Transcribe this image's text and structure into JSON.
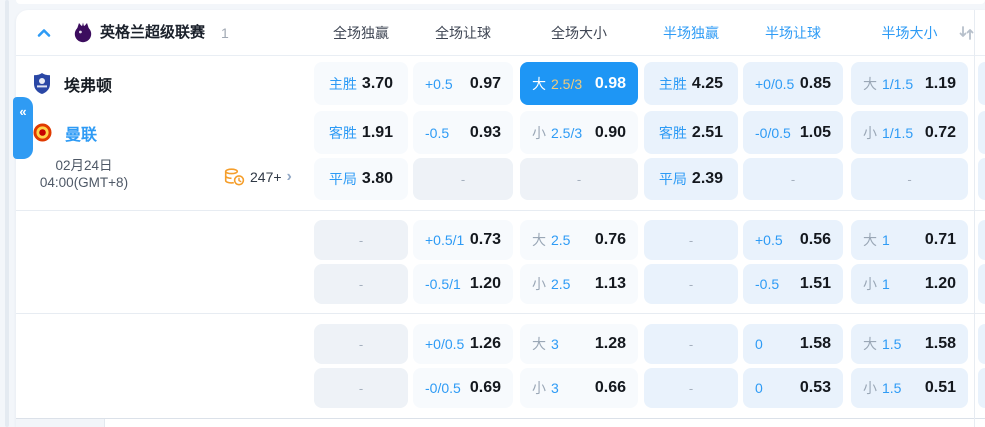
{
  "colors": {
    "accent": "#2E9BF5",
    "selected_bg": "#1E96F5",
    "selected_line": "#EFCB7D",
    "half_cell_bg": "#E9F2FC",
    "full_cell_bg": "#F7FAFD"
  },
  "icons": {
    "collapse_tab": "«",
    "more_arrow": "›"
  },
  "league_header": {
    "name": "英格兰超级联赛",
    "count": "1"
  },
  "columns": [
    {
      "label": "全场独赢",
      "scope": "full"
    },
    {
      "label": "全场让球",
      "scope": "full"
    },
    {
      "label": "全场大小",
      "scope": "full"
    },
    {
      "label": "半场独赢",
      "scope": "half"
    },
    {
      "label": "半场让球",
      "scope": "half"
    },
    {
      "label": "半场大小",
      "scope": "half"
    }
  ],
  "match": {
    "home_team": "埃弗顿",
    "away_team": "曼联",
    "date": "02月24日",
    "time": "04:00(GMT+8)",
    "more_markets": "247+"
  },
  "odds_rows": [
    [
      {
        "type": "win",
        "label": "主胜",
        "value": "3.70"
      },
      {
        "type": "hcp",
        "label": "+0.5",
        "value": "0.97"
      },
      {
        "type": "ou",
        "side": "大",
        "line": "2.5/3",
        "value": "0.98",
        "selected": true
      },
      {
        "type": "win",
        "label": "主胜",
        "value": "4.25"
      },
      {
        "type": "hcp",
        "label": "+0/0.5",
        "value": "0.85"
      },
      {
        "type": "ou",
        "side": "大",
        "line": "1/1.5",
        "value": "1.19"
      }
    ],
    [
      {
        "type": "win",
        "label": "客胜",
        "value": "1.91"
      },
      {
        "type": "hcp",
        "label": "-0.5",
        "value": "0.93"
      },
      {
        "type": "ou",
        "side": "小",
        "line": "2.5/3",
        "value": "0.90"
      },
      {
        "type": "win",
        "label": "客胜",
        "value": "2.51"
      },
      {
        "type": "hcp",
        "label": "-0/0.5",
        "value": "1.05"
      },
      {
        "type": "ou",
        "side": "小",
        "line": "1/1.5",
        "value": "0.72"
      }
    ],
    [
      {
        "type": "win",
        "label": "平局",
        "value": "3.80"
      },
      {
        "type": "dash",
        "label": "-"
      },
      {
        "type": "dash",
        "label": "-"
      },
      {
        "type": "win",
        "label": "平局",
        "value": "2.39"
      },
      {
        "type": "dash",
        "label": "-"
      },
      {
        "type": "dash",
        "label": "-"
      }
    ],
    [
      {
        "type": "dash",
        "label": "-"
      },
      {
        "type": "hcp",
        "label": "+0.5/1",
        "value": "0.73"
      },
      {
        "type": "ou",
        "side": "大",
        "line": "2.5",
        "value": "0.76"
      },
      {
        "type": "dash",
        "label": "-"
      },
      {
        "type": "hcp",
        "label": "+0.5",
        "value": "0.56"
      },
      {
        "type": "ou",
        "side": "大",
        "line": "1",
        "value": "0.71"
      }
    ],
    [
      {
        "type": "dash",
        "label": "-"
      },
      {
        "type": "hcp",
        "label": "-0.5/1",
        "value": "1.20"
      },
      {
        "type": "ou",
        "side": "小",
        "line": "2.5",
        "value": "1.13"
      },
      {
        "type": "dash",
        "label": "-"
      },
      {
        "type": "hcp",
        "label": "-0.5",
        "value": "1.51"
      },
      {
        "type": "ou",
        "side": "小",
        "line": "1",
        "value": "1.20"
      }
    ],
    [
      {
        "type": "dash",
        "label": "-"
      },
      {
        "type": "hcp",
        "label": "+0/0.5",
        "value": "1.26"
      },
      {
        "type": "ou",
        "side": "大",
        "line": "3",
        "value": "1.28"
      },
      {
        "type": "dash",
        "label": "-"
      },
      {
        "type": "hcp",
        "label": "0",
        "value": "1.58"
      },
      {
        "type": "ou",
        "side": "大",
        "line": "1.5",
        "value": "1.58"
      }
    ],
    [
      {
        "type": "dash",
        "label": "-"
      },
      {
        "type": "hcp",
        "label": "-0/0.5",
        "value": "0.69"
      },
      {
        "type": "ou",
        "side": "小",
        "line": "3",
        "value": "0.66"
      },
      {
        "type": "dash",
        "label": "-"
      },
      {
        "type": "hcp",
        "label": "0",
        "value": "0.53"
      },
      {
        "type": "ou",
        "side": "小",
        "line": "1.5",
        "value": "0.51"
      }
    ]
  ]
}
